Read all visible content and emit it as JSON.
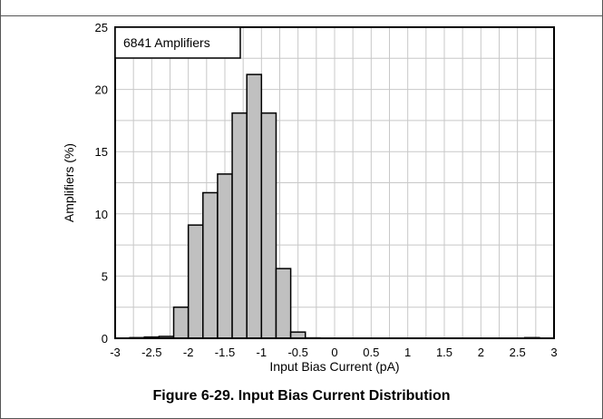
{
  "caption": "Figure 6-29. Input Bias Current Distribution",
  "chart_data": {
    "type": "bar",
    "title": "",
    "annotation": "6841 Amplifiers",
    "xlabel": "Input Bias Current (pA)",
    "ylabel": "Amplifiers (%)",
    "xlim": [
      -3,
      3
    ],
    "ylim": [
      0,
      25
    ],
    "xticks": [
      "-3",
      "-2.5",
      "-2",
      "-1.5",
      "-1",
      "-0.5",
      "0",
      "0.5",
      "1",
      "1.5",
      "2",
      "2.5",
      "3"
    ],
    "yticks": [
      "0",
      "5",
      "10",
      "15",
      "20",
      "25"
    ],
    "grid": true,
    "bin_width": 0.2,
    "bar_color": "#c0c0c0",
    "bins": [
      {
        "x": -2.9,
        "value": 0.02
      },
      {
        "x": -2.7,
        "value": 0.05
      },
      {
        "x": -2.5,
        "value": 0.1
      },
      {
        "x": -2.3,
        "value": 0.15
      },
      {
        "x": -2.1,
        "value": 2.5
      },
      {
        "x": -1.9,
        "value": 9.1
      },
      {
        "x": -1.7,
        "value": 11.7
      },
      {
        "x": -1.5,
        "value": 13.2
      },
      {
        "x": -1.3,
        "value": 18.1
      },
      {
        "x": -1.1,
        "value": 21.2
      },
      {
        "x": -0.9,
        "value": 18.1
      },
      {
        "x": -0.7,
        "value": 5.6
      },
      {
        "x": -0.5,
        "value": 0.5
      },
      {
        "x": -0.3,
        "value": 0.03
      },
      {
        "x": 2.7,
        "value": 0.05
      }
    ]
  }
}
